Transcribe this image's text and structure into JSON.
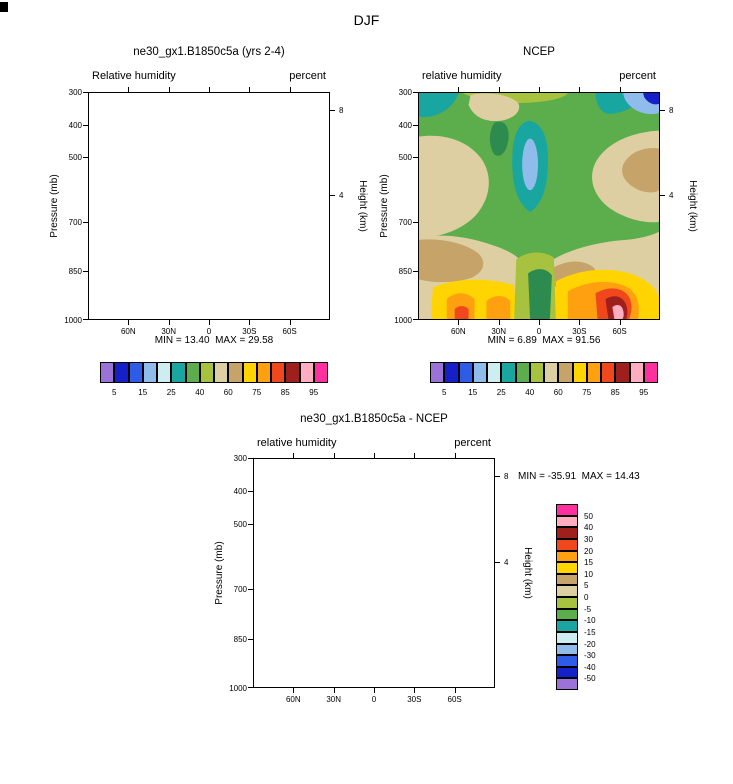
{
  "figure": {
    "title": "DJF"
  },
  "panels": {
    "model": {
      "title": "ne30_gx1.B1850c5a (yrs 2-4)",
      "left_subtitle": "Relative humidity",
      "right_subtitle": "percent",
      "stats": "MIN = 13.40  MAX = 29.58"
    },
    "ncep": {
      "title": "NCEP",
      "left_subtitle": "relative humidity",
      "right_subtitle": "percent",
      "stats": "MIN = 6.89  MAX = 91.56"
    },
    "diff": {
      "title": "ne30_gx1.B1850c5a - NCEP",
      "left_subtitle": "relative humidity",
      "right_subtitle": "percent",
      "stats": "MIN = -35.91  MAX = 14.43"
    }
  },
  "axes": {
    "pressure_label": "Pressure (mb)",
    "height_label": "Height (km)",
    "pressure_ticks": [
      "300",
      "400",
      "500",
      "700",
      "850",
      "1000"
    ],
    "lat_ticks": [
      "60N",
      "30N",
      "0",
      "30S",
      "60S"
    ],
    "height_ticks": [
      "8",
      "4"
    ]
  },
  "colorbar": {
    "h_labels": [
      "5",
      "15",
      "25",
      "40",
      "60",
      "75",
      "85",
      "95"
    ],
    "v_labels": [
      "50",
      "40",
      "30",
      "20",
      "15",
      "10",
      "5",
      "0",
      "-5",
      "-10",
      "-15",
      "-20",
      "-30",
      "-40",
      "-50"
    ]
  },
  "palette": {
    "names": [
      "purple",
      "darkblue",
      "blue",
      "lightblue",
      "palecyan",
      "teal",
      "green",
      "yellowgreen",
      "khaki",
      "darktan",
      "yellow",
      "orange",
      "orangered",
      "darkred",
      "pink",
      "magenta"
    ],
    "colors": [
      "#9B72D8",
      "#1620C8",
      "#2E5CE6",
      "#8FBCEA",
      "#CDEDF0",
      "#19A6A0",
      "#5BAE4B",
      "#A6C23E",
      "#DECFA3",
      "#C6A368",
      "#FFD400",
      "#FFA010",
      "#F0481C",
      "#9E1F1B",
      "#FFAEC2",
      "#FF2FA0"
    ],
    "extra": {
      "darkgreen": "#2E8B50"
    }
  },
  "chart_data": [
    {
      "type": "contour",
      "panel": "model",
      "title": "ne30_gx1.B1850c5a (yrs 2-4)",
      "variable": "Relative humidity",
      "units": "percent",
      "season": "DJF",
      "x_ticks": [
        "60N",
        "30N",
        "0",
        "30S",
        "60S"
      ],
      "x_range": [
        "90N",
        "90S"
      ],
      "ylabel": "Pressure (mb)",
      "y_ticks_mb": [
        300,
        400,
        500,
        700,
        850,
        1000
      ],
      "y2label": "Height (km)",
      "y2_ticks_km": [
        8,
        4
      ],
      "min": 13.4,
      "max": 29.58,
      "colorbar_levels": [
        5,
        10,
        15,
        20,
        25,
        30,
        40,
        50,
        60,
        70,
        75,
        80,
        85,
        90,
        95
      ],
      "colorbar_labeled_levels": [
        5,
        15,
        25,
        40,
        60,
        75,
        85,
        95
      ],
      "rendered_filled_contours": false
    },
    {
      "type": "contour",
      "panel": "ncep",
      "title": "NCEP",
      "variable": "relative humidity",
      "units": "percent",
      "season": "DJF",
      "x_ticks": [
        "60N",
        "30N",
        "0",
        "30S",
        "60S"
      ],
      "x_range": [
        "90N",
        "90S"
      ],
      "ylabel": "Pressure (mb)",
      "y_ticks_mb": [
        300,
        400,
        500,
        700,
        850,
        1000
      ],
      "y2label": "Height (km)",
      "y2_ticks_km": [
        8,
        4
      ],
      "min": 6.89,
      "max": 91.56,
      "colorbar_levels": [
        5,
        10,
        15,
        20,
        25,
        30,
        40,
        50,
        60,
        70,
        75,
        80,
        85,
        90,
        95
      ],
      "colorbar_labeled_levels": [
        5,
        15,
        25,
        40,
        60,
        75,
        85,
        95
      ],
      "rendered_filled_contours": true,
      "features": [
        "high RH >70% (yellow/orange/red) near surface 850-1000mb with >90% core near 60S",
        "secondary surface maxima 70-85% between 60N and 30N",
        "dry teal tongue 25-30% with <25% light-blue core aloft 400-650mb near 0-15N",
        "tan 50-70% subtropical mid-level regions in both hemispheres",
        "blue 15-25% patch at 300mb near southern high latitudes and cyan patch at 300mb northern high latitudes",
        "green 30-50% background elsewhere"
      ]
    },
    {
      "type": "contour",
      "panel": "difference",
      "title": "ne30_gx1.B1850c5a - NCEP",
      "variable": "relative humidity",
      "units": "percent",
      "season": "DJF",
      "x_ticks": [
        "60N",
        "30N",
        "0",
        "30S",
        "60S"
      ],
      "x_range": [
        "90N",
        "90S"
      ],
      "ylabel": "Pressure (mb)",
      "y_ticks_mb": [
        300,
        400,
        500,
        700,
        850,
        1000
      ],
      "y2label": "Height (km)",
      "y2_ticks_km": [
        8,
        4
      ],
      "min": -35.91,
      "max": 14.43,
      "colorbar_levels": [
        50,
        40,
        30,
        20,
        15,
        10,
        5,
        0,
        -5,
        -10,
        -15,
        -20,
        -30,
        -40,
        -50
      ],
      "colorbar_orientation": "vertical",
      "rendered_filled_contours": false
    }
  ]
}
